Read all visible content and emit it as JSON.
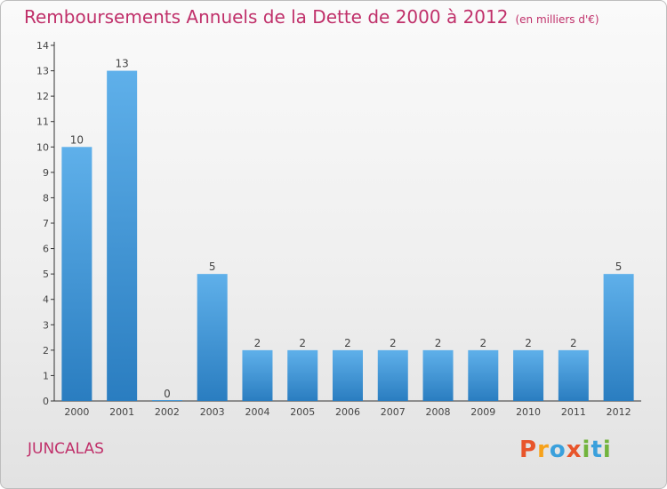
{
  "title": "Remboursements Annuels de la Dette de 2000 à 2012",
  "unit": "(en milliers d'€)",
  "commune": "JUNCALAS",
  "logo": {
    "letters": [
      "P",
      "r",
      "o",
      "x",
      "i",
      "t",
      "i"
    ],
    "colors": [
      "#e8552b",
      "#f7a21b",
      "#3aa0dc",
      "#e8552b",
      "#72b43d",
      "#3aa0dc",
      "#72b43d"
    ]
  },
  "colors": {
    "title": "#c0306a",
    "bar_top": "#5fb0ea",
    "bar_bottom": "#2a7dc0",
    "axis": "#333333",
    "text": "#444444"
  },
  "chart_data": {
    "type": "bar",
    "categories": [
      "2000",
      "2001",
      "2002",
      "2003",
      "2004",
      "2005",
      "2006",
      "2007",
      "2008",
      "2009",
      "2010",
      "2011",
      "2012"
    ],
    "values": [
      10,
      13,
      0,
      5,
      2,
      2,
      2,
      2,
      2,
      2,
      2,
      2,
      5
    ],
    "data_labels": [
      "10",
      "13",
      "0",
      "5",
      "2",
      "2",
      "2",
      "2",
      "2",
      "2",
      "2",
      "2",
      "5"
    ],
    "yticks": [
      "0",
      "1",
      "2",
      "3",
      "4",
      "5",
      "6",
      "7",
      "8",
      "9",
      "10",
      "11",
      "12",
      "13",
      "14"
    ],
    "ylim": [
      0,
      14
    ],
    "grid": false,
    "legend": "none"
  }
}
